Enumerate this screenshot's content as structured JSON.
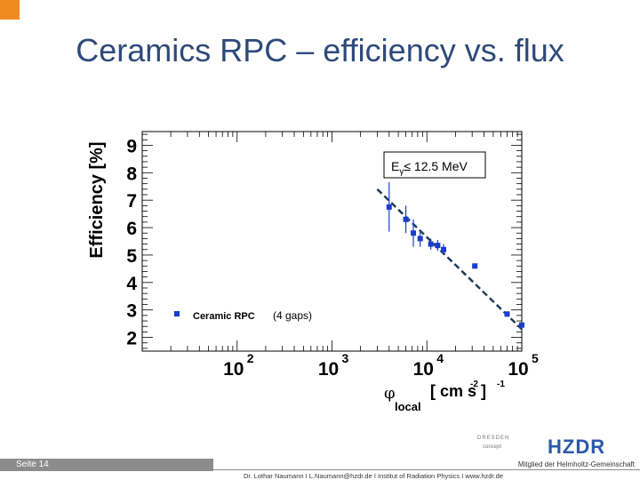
{
  "page": {
    "title": "Ceramics RPC – efficiency vs. flux",
    "page_label": "Seite 14",
    "member_text": "Mitglied der Helmholtz-Gemeinschaft",
    "credits": "Dr. Lothar Naumann  I  L.Naumann@hzdr.de  I  Institut of Radiation Physics  I  www.hzdr.de",
    "logo_dresden_line1": "DRESDEN",
    "logo_dresden_line2": "concept",
    "logo_hzdr": "HZDR",
    "accent_color": "#f08c1e",
    "title_color": "#2e4a7a"
  },
  "chart_data": {
    "type": "scatter",
    "x_scale": "log",
    "xlim": [
      10,
      100000
    ],
    "ylim": [
      1.5,
      9.5
    ],
    "xtick_labels": [
      "10",
      "10",
      "10",
      "10"
    ],
    "xtick_exponents": [
      "2",
      "3",
      "4",
      "5"
    ],
    "xtick_values": [
      100,
      1000,
      10000,
      100000
    ],
    "yticks": [
      "2",
      "3",
      "4",
      "5",
      "6",
      "7",
      "8",
      "9"
    ],
    "ylabel": "Efficiency [%]",
    "xlabel": "φ",
    "xlabel_sub": "local",
    "xlabel_units": "[ cm  s  ]",
    "xlabel_exp1": "-2",
    "xlabel_exp2": "-1",
    "annotation_E": "E",
    "annotation_sub": "γ",
    "annotation_rest": "≤ 12.5 MeV",
    "legend": {
      "label": "Ceramic RPC",
      "suffix": "(4 gaps)",
      "placement": "bottom-left"
    },
    "marker_color": "#1a3ccf",
    "fit_color": "#1f3b5a",
    "series": [
      {
        "name": "Ceramic RPC",
        "points": [
          {
            "x": 4000,
            "y": 6.75,
            "err": 0.9
          },
          {
            "x": 6000,
            "y": 6.3,
            "err": 0.5
          },
          {
            "x": 7200,
            "y": 5.8,
            "err": 0.5
          },
          {
            "x": 8500,
            "y": 5.6,
            "err": 0.3
          },
          {
            "x": 11000,
            "y": 5.4,
            "err": 0.2
          },
          {
            "x": 13000,
            "y": 5.35,
            "err": 0.2
          },
          {
            "x": 15000,
            "y": 5.2,
            "err": 0.2
          },
          {
            "x": 32000,
            "y": 4.6,
            "err": 0.0
          },
          {
            "x": 70000,
            "y": 2.85,
            "err": 0.0
          },
          {
            "x": 100000,
            "y": 2.45,
            "err": 0.0
          }
        ]
      }
    ],
    "fit_line": [
      {
        "x": 3000,
        "y": 7.4
      },
      {
        "x": 100000,
        "y": 2.3
      }
    ]
  }
}
